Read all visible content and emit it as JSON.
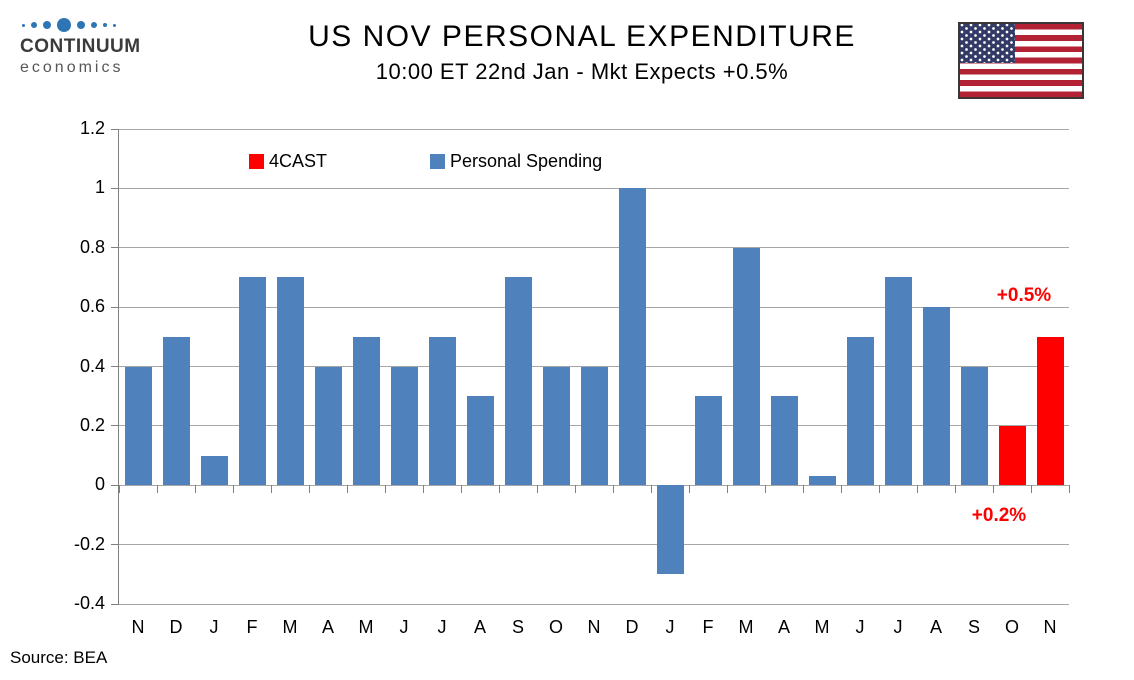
{
  "header": {
    "logo": {
      "brand": "CONTINUUM",
      "sub": "economics"
    },
    "title": "US NOV PERSONAL EXPENDITURE",
    "subtitle": "10:00 ET 22nd Jan - Mkt Expects +0.5%"
  },
  "legend": [
    {
      "label": "4CAST",
      "color": "#ff0000"
    },
    {
      "label": "Personal Spending",
      "color": "#4f81bd"
    }
  ],
  "chart_data": {
    "type": "bar",
    "title": "US NOV PERSONAL EXPENDITURE",
    "subtitle": "10:00 ET 22nd Jan - Mkt Expects +0.5%",
    "categories": [
      "N",
      "D",
      "J",
      "F",
      "M",
      "A",
      "M",
      "J",
      "J",
      "A",
      "S",
      "O",
      "N",
      "D",
      "J",
      "F",
      "M",
      "A",
      "M",
      "J",
      "J",
      "A",
      "S",
      "O",
      "N"
    ],
    "series": [
      {
        "name": "Personal Spending",
        "color": "#4f81bd",
        "values": [
          0.4,
          0.5,
          0.1,
          0.7,
          0.7,
          0.4,
          0.5,
          0.4,
          0.5,
          0.3,
          0.7,
          0.4,
          0.4,
          1.0,
          -0.3,
          0.3,
          0.8,
          0.3,
          0.03,
          0.5,
          0.7,
          0.6,
          0.4,
          null,
          null
        ]
      },
      {
        "name": "4CAST",
        "color": "#ff0000",
        "values": [
          null,
          null,
          null,
          null,
          null,
          null,
          null,
          null,
          null,
          null,
          null,
          null,
          null,
          null,
          null,
          null,
          null,
          null,
          null,
          null,
          null,
          null,
          null,
          0.2,
          0.5
        ]
      }
    ],
    "xlabel": "",
    "ylabel": "",
    "ylim": [
      -0.4,
      1.2
    ],
    "ytick_labels": [
      "1.2",
      "1",
      "0.8",
      "0.6",
      "0.4",
      "0.2",
      "0",
      "-0.2",
      "-0.4"
    ],
    "grid": true,
    "legend_position": "top",
    "annotations": [
      {
        "text": "+0.5%",
        "index": 24,
        "placement": "above",
        "color": "#ff0000"
      },
      {
        "text": "+0.2%",
        "index": 23,
        "placement": "below",
        "color": "#ff0000"
      }
    ]
  },
  "source": "Source: BEA",
  "icons": {
    "logo_dots": "continuum-dots-icon",
    "flag": "us-flag-icon"
  }
}
